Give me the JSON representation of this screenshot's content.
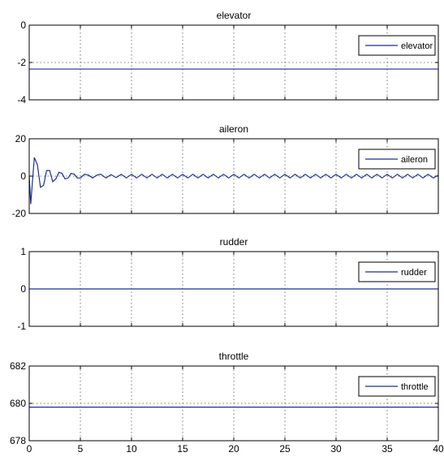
{
  "chart_data": [
    {
      "type": "line",
      "title": "elevator",
      "xlim": [
        0,
        40
      ],
      "ylim": [
        -4,
        0
      ],
      "yticks": [
        0,
        -2,
        -4
      ],
      "xticks": [
        0,
        5,
        10,
        15,
        20,
        25,
        30,
        35,
        40
      ],
      "show_xtick_labels": false,
      "grid": true,
      "legend_position": "top-right",
      "series": [
        {
          "name": "elevator",
          "color": "#1f2f8f",
          "x": [
            0,
            40
          ],
          "y": [
            -2.35,
            -2.35
          ]
        }
      ]
    },
    {
      "type": "line",
      "title": "aileron",
      "xlim": [
        0,
        40
      ],
      "ylim": [
        -20,
        20
      ],
      "yticks": [
        20,
        0,
        -20
      ],
      "xticks": [
        0,
        5,
        10,
        15,
        20,
        25,
        30,
        35,
        40
      ],
      "show_xtick_labels": false,
      "grid": true,
      "legend_position": "top-right",
      "series": [
        {
          "name": "aileron",
          "color": "#1f2f8f",
          "x": [
            0,
            0.15,
            0.3,
            0.5,
            0.8,
            1.1,
            1.4,
            1.7,
            2.0,
            2.3,
            2.6,
            2.9,
            3.2,
            3.5,
            3.8,
            4.1,
            4.4,
            4.7,
            5.0,
            5.4,
            5.8,
            6.2,
            6.6,
            7.0,
            7.5,
            8.0,
            8.5,
            9.0,
            9.5,
            10.0,
            10.5,
            11.0,
            11.5,
            12.0,
            12.5,
            13.0,
            13.5,
            14.0,
            14.5,
            15.0,
            15.5,
            16.0,
            16.5,
            17.0,
            17.5,
            18.0,
            18.5,
            19.0,
            19.5,
            20.0,
            20.5,
            21.0,
            21.5,
            22.0,
            22.5,
            23.0,
            23.5,
            24.0,
            24.5,
            25.0,
            25.5,
            26.0,
            26.5,
            27.0,
            27.5,
            28.0,
            28.5,
            29.0,
            29.5,
            30.0,
            30.5,
            31.0,
            31.5,
            32.0,
            32.5,
            33.0,
            33.5,
            34.0,
            34.5,
            35.0,
            35.5,
            36.0,
            36.5,
            37.0,
            37.5,
            38.0,
            38.5,
            39.0,
            39.5,
            40.0
          ],
          "y": [
            0,
            -15,
            -4,
            10,
            6,
            -6,
            -5,
            3,
            3,
            -3,
            -1.5,
            2,
            1.5,
            -1.5,
            -1,
            1.5,
            1,
            -1,
            -1,
            1,
            0.5,
            -1,
            0.5,
            1,
            -1,
            0.8,
            -0.8,
            1,
            -1,
            1,
            -1,
            1,
            -1,
            1,
            -1,
            1,
            -1,
            1,
            -1,
            1,
            -1,
            1,
            -1,
            1,
            -1,
            1,
            -1,
            1,
            -1,
            1,
            -1,
            1,
            -1,
            1,
            -1,
            1,
            -1,
            1,
            -1,
            1,
            -1,
            1,
            -1,
            1,
            -1,
            1,
            -1,
            1,
            -1,
            1,
            -1,
            1,
            -1,
            1,
            -1,
            1,
            -1,
            1,
            -1,
            1,
            -1,
            1,
            -1,
            1,
            -1,
            1,
            -1,
            1,
            -1,
            0.5
          ]
        }
      ]
    },
    {
      "type": "line",
      "title": "rudder",
      "xlim": [
        0,
        40
      ],
      "ylim": [
        -1,
        1
      ],
      "yticks": [
        1,
        0,
        -1
      ],
      "xticks": [
        0,
        5,
        10,
        15,
        20,
        25,
        30,
        35,
        40
      ],
      "show_xtick_labels": false,
      "grid": true,
      "legend_position": "top-right",
      "series": [
        {
          "name": "rudder",
          "color": "#1f2f8f",
          "x": [
            0,
            40
          ],
          "y": [
            0,
            0
          ]
        }
      ]
    },
    {
      "type": "line",
      "title": "throttle",
      "xlim": [
        0,
        40
      ],
      "ylim": [
        678,
        682
      ],
      "yticks": [
        682,
        680,
        678
      ],
      "xticks": [
        0,
        5,
        10,
        15,
        20,
        25,
        30,
        35,
        40
      ],
      "show_xtick_labels": true,
      "grid": true,
      "legend_position": "top-right",
      "series": [
        {
          "name": "throttle",
          "color": "#1f2f8f",
          "x": [
            0,
            40
          ],
          "y": [
            679.8,
            679.8
          ]
        }
      ]
    }
  ]
}
